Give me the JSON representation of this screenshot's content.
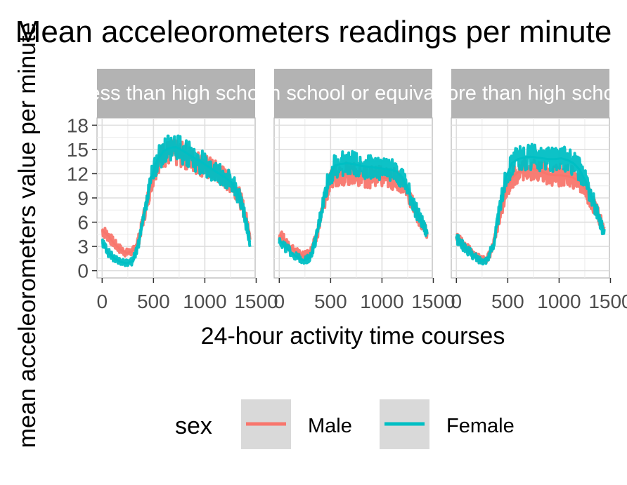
{
  "chart_data": {
    "type": "line",
    "title": "Mean acceleorometers readings per minute",
    "xlabel": "24-hour activity time courses",
    "ylabel": "mean acceleorometers value per minute",
    "xlim": [
      0,
      1440
    ],
    "ylim": [
      0,
      18
    ],
    "x_ticks": [
      "0",
      "500",
      "1000",
      "1500"
    ],
    "y_ticks": [
      "0",
      "3",
      "6",
      "9",
      "12",
      "15",
      "18"
    ],
    "grid": true,
    "legend": {
      "title": "sex",
      "position": "bottom",
      "entries": [
        "Male",
        "Female"
      ]
    },
    "colors": {
      "Male": "#f8766d",
      "Female": "#00bfc4",
      "strip": "#b3b3b3",
      "grid": "#ebebeb"
    },
    "facets": [
      {
        "label": "Less than high school",
        "series": [
          {
            "name": "Male",
            "x": [
              0,
              60,
              120,
              180,
              240,
              300,
              360,
              420,
              480,
              540,
              600,
              660,
              720,
              780,
              840,
              900,
              960,
              1020,
              1080,
              1140,
              1200,
              1260,
              1320,
              1380,
              1440
            ],
            "values": [
              5.0,
              4.3,
              3.3,
              2.6,
              2.2,
              2.4,
              4.0,
              7.5,
              11.0,
              13.5,
              14.4,
              14.6,
              14.5,
              14.3,
              14.0,
              13.6,
              13.2,
              12.8,
              12.4,
              12.0,
              11.4,
              10.8,
              9.8,
              7.5,
              4.5
            ]
          },
          {
            "name": "Female",
            "x": [
              0,
              60,
              120,
              180,
              240,
              300,
              360,
              420,
              480,
              540,
              600,
              660,
              720,
              780,
              840,
              900,
              960,
              1020,
              1080,
              1140,
              1200,
              1260,
              1320,
              1380,
              1440
            ],
            "values": [
              3.5,
              2.2,
              1.5,
              1.1,
              0.9,
              1.2,
              3.5,
              7.5,
              11.5,
              13.8,
              14.8,
              15.2,
              15.3,
              14.9,
              14.4,
              13.9,
              13.5,
              13.0,
              12.5,
              12.0,
              11.5,
              10.9,
              9.6,
              7.2,
              3.5
            ]
          }
        ]
      },
      {
        "label": "High school or equivalent",
        "series": [
          {
            "name": "Male",
            "x": [
              0,
              60,
              120,
              180,
              240,
              300,
              360,
              420,
              480,
              540,
              600,
              660,
              720,
              780,
              840,
              900,
              960,
              1020,
              1080,
              1140,
              1200,
              1260,
              1320,
              1380,
              1440
            ],
            "values": [
              4.5,
              3.6,
              2.8,
              2.2,
              1.8,
              2.2,
              4.0,
              7.5,
              10.5,
              11.8,
              12.0,
              12.0,
              11.9,
              11.8,
              11.7,
              11.6,
              11.6,
              11.5,
              11.4,
              11.3,
              10.8,
              9.5,
              7.5,
              6.0,
              4.8
            ]
          },
          {
            "name": "Female",
            "x": [
              0,
              60,
              120,
              180,
              240,
              300,
              360,
              420,
              480,
              540,
              600,
              660,
              720,
              780,
              840,
              900,
              960,
              1020,
              1080,
              1140,
              1200,
              1260,
              1320,
              1380,
              1440
            ],
            "values": [
              3.8,
              2.9,
              2.2,
              1.6,
              1.3,
              1.6,
              4.0,
              8.0,
              11.5,
              13.0,
              13.2,
              13.3,
              13.2,
              13.0,
              12.9,
              12.8,
              12.7,
              12.6,
              12.5,
              12.3,
              11.5,
              9.8,
              7.8,
              6.2,
              4.5
            ]
          }
        ]
      },
      {
        "label": "More than high school",
        "series": [
          {
            "name": "Male",
            "x": [
              0,
              60,
              120,
              180,
              240,
              300,
              360,
              420,
              480,
              540,
              600,
              660,
              720,
              780,
              840,
              900,
              960,
              1020,
              1080,
              1140,
              1200,
              1260,
              1320,
              1380,
              1440
            ],
            "values": [
              4.2,
              3.3,
              2.6,
              1.9,
              1.4,
              1.5,
              3.0,
              6.5,
              10.0,
              11.5,
              12.2,
              12.6,
              12.7,
              12.5,
              12.2,
              11.9,
              11.8,
              11.8,
              11.7,
              11.5,
              11.0,
              10.0,
              8.5,
              7.0,
              4.8
            ]
          },
          {
            "name": "Female",
            "x": [
              0,
              60,
              120,
              180,
              240,
              300,
              360,
              420,
              480,
              540,
              600,
              660,
              720,
              780,
              840,
              900,
              960,
              1020,
              1080,
              1140,
              1200,
              1260,
              1320,
              1380,
              1440
            ],
            "values": [
              4.0,
              3.1,
              2.4,
              1.7,
              1.2,
              1.4,
              3.2,
              7.5,
              11.5,
              13.3,
              13.8,
              14.0,
              14.1,
              14.0,
              13.9,
              13.8,
              13.8,
              13.9,
              13.7,
              13.3,
              12.5,
              11.0,
              9.0,
              7.0,
              4.5
            ]
          }
        ]
      }
    ]
  }
}
